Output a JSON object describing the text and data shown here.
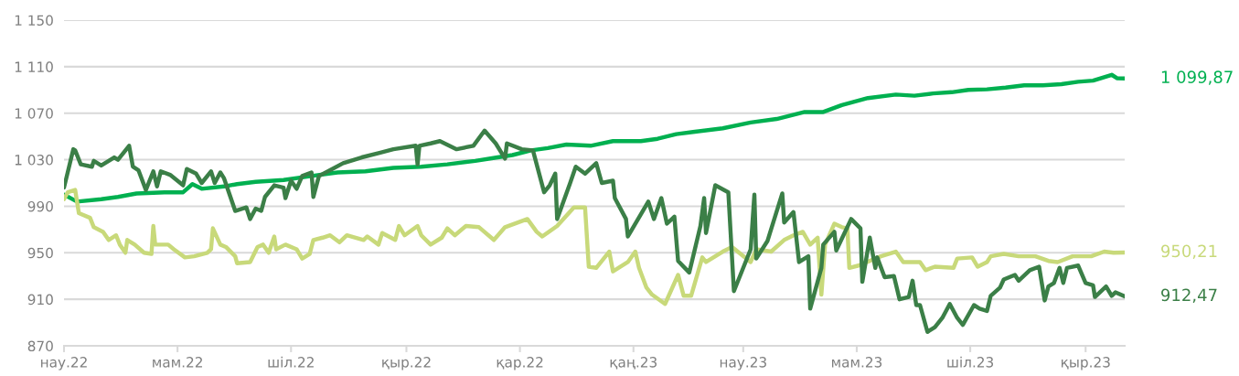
{
  "chart_data": {
    "type": "line",
    "xlim": [
      "2022-03-01",
      "2023-09-22"
    ],
    "ylim": [
      870,
      1150
    ],
    "xticks": [
      {
        "value": "2022-03-01",
        "label": "нау.22"
      },
      {
        "value": "2022-05-01",
        "label": "мам.22"
      },
      {
        "value": "2022-07-01",
        "label": "шіл.22"
      },
      {
        "value": "2022-09-01",
        "label": "қыр.22"
      },
      {
        "value": "2022-11-01",
        "label": "қар.22"
      },
      {
        "value": "2023-01-01",
        "label": "қаң.23"
      },
      {
        "value": "2023-03-01",
        "label": "нау.23"
      },
      {
        "value": "2023-05-01",
        "label": "мам.23"
      },
      {
        "value": "2023-07-01",
        "label": "шіл.23"
      },
      {
        "value": "2023-09-01",
        "label": "қыр.23"
      }
    ],
    "yticks": [
      870,
      910,
      950,
      990,
      {
        "value": 1030,
        "label": "1 030"
      },
      {
        "value": 1070,
        "label": "1 070"
      },
      {
        "value": 1110,
        "label": "1 110"
      },
      {
        "value": 1150,
        "label": "1 150"
      }
    ],
    "grid": "y",
    "marker": "none",
    "line_style": "solid",
    "annotations": [
      {
        "text": "1 099,87",
        "x": "2023-09-22",
        "y": 1099.87
      },
      {
        "text": "950,21",
        "x": "2023-09-22",
        "y": 950.21
      },
      {
        "text": "912,47",
        "x": "2023-09-22",
        "y": 912.47
      }
    ],
    "series": [
      {
        "color": "#00b050",
        "x": [
          "2022-03-01",
          "2022-03-08",
          "2022-03-21",
          "2022-03-30",
          "2022-04-09",
          "2022-04-24",
          "2022-05-04",
          "2022-05-09",
          "2022-05-14",
          "2022-05-26",
          "2022-06-02",
          "2022-06-12",
          "2022-06-27",
          "2022-07-12",
          "2022-07-26",
          "2022-08-10",
          "2022-08-25",
          "2022-09-09",
          "2022-09-23",
          "2022-10-08",
          "2022-10-20",
          "2022-10-28",
          "2022-11-07",
          "2022-11-16",
          "2022-11-26",
          "2022-12-09",
          "2022-12-21",
          "2023-01-05",
          "2023-01-14",
          "2023-01-24",
          "2023-02-03",
          "2023-02-18",
          "2023-03-05",
          "2023-03-19",
          "2023-04-03",
          "2023-04-13",
          "2023-04-23",
          "2023-05-07",
          "2023-05-22",
          "2023-06-01",
          "2023-06-11",
          "2023-06-21",
          "2023-06-30",
          "2023-07-10",
          "2023-07-20",
          "2023-07-30",
          "2023-08-09",
          "2023-08-19",
          "2023-08-28",
          "2023-09-05",
          "2023-09-15",
          "2023-09-18",
          "2023-09-22"
        ],
        "values": [
          1000,
          994,
          996,
          998,
          1001,
          1002,
          1002,
          1009,
          1005,
          1007,
          1009,
          1011,
          1012.5,
          1016,
          1019,
          1020,
          1023,
          1024,
          1026,
          1029,
          1032,
          1034,
          1038,
          1040,
          1043,
          1042,
          1046,
          1046,
          1048,
          1052,
          1054,
          1057,
          1062,
          1065,
          1071,
          1071,
          1077,
          1083,
          1086,
          1085,
          1087,
          1088,
          1090,
          1090.5,
          1092,
          1094,
          1094,
          1095,
          1097,
          1098,
          1103,
          1100,
          1099.87
        ]
      },
      {
        "color": "#c8d97a",
        "x": [
          "2022-03-01",
          "2022-03-03",
          "2022-03-07",
          "2022-03-09",
          "2022-03-15",
          "2022-03-17",
          "2022-03-22",
          "2022-03-25",
          "2022-03-29",
          "2022-03-31",
          "2022-04-03",
          "2022-04-04",
          "2022-04-08",
          "2022-04-13",
          "2022-04-17",
          "2022-04-18",
          "2022-04-19",
          "2022-04-26",
          "2022-04-29",
          "2022-05-05",
          "2022-05-10",
          "2022-05-17",
          "2022-05-19",
          "2022-05-20",
          "2022-05-24",
          "2022-05-27",
          "2022-06-01",
          "2022-06-02",
          "2022-06-09",
          "2022-06-13",
          "2022-06-16",
          "2022-06-19",
          "2022-06-22",
          "2022-06-23",
          "2022-06-28",
          "2022-07-04",
          "2022-07-07",
          "2022-07-11",
          "2022-07-13",
          "2022-07-18",
          "2022-07-22",
          "2022-07-27",
          "2022-07-31",
          "2022-08-09",
          "2022-08-11",
          "2022-08-17",
          "2022-08-19",
          "2022-08-26",
          "2022-08-28",
          "2022-08-31",
          "2022-09-07",
          "2022-09-09",
          "2022-09-14",
          "2022-09-20",
          "2022-09-23",
          "2022-09-27",
          "2022-10-03",
          "2022-10-10",
          "2022-10-18",
          "2022-10-24",
          "2022-11-05",
          "2022-11-10",
          "2022-11-13",
          "2022-11-21",
          "2022-11-30",
          "2022-12-06",
          "2022-12-08",
          "2022-12-12",
          "2022-12-19",
          "2022-12-21",
          "2022-12-29",
          "2023-01-02",
          "2023-01-04",
          "2023-01-08",
          "2023-01-11",
          "2023-01-18",
          "2023-01-25",
          "2023-01-28",
          "2023-02-01",
          "2023-02-07",
          "2023-02-09",
          "2023-02-18",
          "2023-02-23",
          "2023-03-05",
          "2023-03-08",
          "2023-03-16",
          "2023-03-23",
          "2023-03-28",
          "2023-04-02",
          "2023-04-06",
          "2023-04-10",
          "2023-04-12",
          "2023-04-14",
          "2023-04-19",
          "2023-04-23",
          "2023-04-26",
          "2023-04-27",
          "2023-05-02",
          "2023-05-14",
          "2023-05-22",
          "2023-05-26",
          "2023-06-04",
          "2023-06-07",
          "2023-06-12",
          "2023-06-22",
          "2023-06-24",
          "2023-07-02",
          "2023-07-05",
          "2023-07-10",
          "2023-07-12",
          "2023-07-19",
          "2023-07-27",
          "2023-08-05",
          "2023-08-12",
          "2023-08-17",
          "2023-08-25",
          "2023-09-04",
          "2023-09-11",
          "2023-09-16",
          "2023-09-22"
        ],
        "values": [
          996,
          1002,
          1004,
          984,
          980,
          972,
          968,
          961,
          965,
          957,
          950,
          961,
          957,
          950,
          949,
          973,
          957,
          957,
          953,
          946,
          947,
          950,
          953,
          971,
          957,
          955,
          947,
          941,
          942,
          955,
          957,
          950,
          964,
          953,
          957,
          953,
          945,
          949,
          961,
          963,
          965,
          959,
          965,
          961,
          964,
          957,
          967,
          961,
          973,
          965,
          973,
          965,
          957,
          963,
          971,
          965,
          973,
          972,
          961,
          972,
          979,
          968,
          964,
          973,
          989,
          989,
          938,
          937,
          951,
          934,
          942,
          951,
          937,
          920,
          914,
          906,
          931,
          913,
          913,
          946,
          942,
          951,
          955,
          942,
          953,
          951,
          961,
          965,
          968,
          957,
          963,
          914,
          957,
          975,
          972,
          971,
          937,
          939,
          947,
          951,
          942,
          942,
          935,
          938,
          937,
          945,
          946,
          938,
          942,
          947,
          949,
          947,
          947,
          943,
          942,
          947,
          947,
          951,
          950,
          950.21
        ]
      },
      {
        "color": "#3b7f47",
        "x": [
          "2022-03-01",
          "2022-03-06",
          "2022-03-07",
          "2022-03-10",
          "2022-03-16",
          "2022-03-17",
          "2022-03-21",
          "2022-03-28",
          "2022-03-30",
          "2022-04-05",
          "2022-04-07",
          "2022-04-10",
          "2022-04-14",
          "2022-04-18",
          "2022-04-20",
          "2022-04-22",
          "2022-04-27",
          "2022-05-04",
          "2022-05-06",
          "2022-05-11",
          "2022-05-14",
          "2022-05-19",
          "2022-05-21",
          "2022-05-24",
          "2022-05-26",
          "2022-06-01",
          "2022-06-07",
          "2022-06-09",
          "2022-06-12",
          "2022-06-15",
          "2022-06-17",
          "2022-06-22",
          "2022-06-27",
          "2022-06-28",
          "2022-07-01",
          "2022-07-04",
          "2022-07-07",
          "2022-07-12",
          "2022-07-13",
          "2022-07-16",
          "2022-07-22",
          "2022-07-29",
          "2022-08-08",
          "2022-08-18",
          "2022-08-25",
          "2022-09-06",
          "2022-09-07",
          "2022-09-08",
          "2022-09-14",
          "2022-09-19",
          "2022-09-28",
          "2022-10-07",
          "2022-10-13",
          "2022-10-19",
          "2022-10-24",
          "2022-10-25",
          "2022-11-02",
          "2022-11-08",
          "2022-11-14",
          "2022-11-17",
          "2022-11-20",
          "2022-11-21",
          "2022-11-28",
          "2022-12-01",
          "2022-12-06",
          "2022-12-12",
          "2022-12-15",
          "2022-12-21",
          "2022-12-22",
          "2022-12-28",
          "2022-12-29",
          "2023-01-09",
          "2023-01-12",
          "2023-01-16",
          "2023-01-19",
          "2023-01-23",
          "2023-01-25",
          "2023-01-31",
          "2023-02-06",
          "2023-02-08",
          "2023-02-09",
          "2023-02-14",
          "2023-02-21",
          "2023-02-24",
          "2023-03-05",
          "2023-03-07",
          "2023-03-08",
          "2023-03-14",
          "2023-03-22",
          "2023-03-23",
          "2023-03-28",
          "2023-03-31",
          "2023-04-05",
          "2023-04-06",
          "2023-04-12",
          "2023-04-13",
          "2023-04-19",
          "2023-04-20",
          "2023-04-28",
          "2023-05-03",
          "2023-05-04",
          "2023-05-08",
          "2023-05-11",
          "2023-05-12",
          "2023-05-16",
          "2023-05-21",
          "2023-05-24",
          "2023-05-29",
          "2023-05-31",
          "2023-06-02",
          "2023-06-04",
          "2023-06-08",
          "2023-06-12",
          "2023-06-16",
          "2023-06-20",
          "2023-06-24",
          "2023-06-27",
          "2023-07-03",
          "2023-07-06",
          "2023-07-10",
          "2023-07-12",
          "2023-07-17",
          "2023-07-19",
          "2023-07-25",
          "2023-07-27",
          "2023-08-02",
          "2023-08-07",
          "2023-08-10",
          "2023-08-12",
          "2023-08-15",
          "2023-08-18",
          "2023-08-20",
          "2023-08-22",
          "2023-08-28",
          "2023-09-01",
          "2023-09-05",
          "2023-09-06",
          "2023-09-12",
          "2023-09-15",
          "2023-09-17",
          "2023-09-22"
        ],
        "values": [
          1006,
          1039,
          1038,
          1026,
          1024,
          1029,
          1025,
          1032,
          1030,
          1042,
          1024,
          1021,
          1004,
          1020,
          1007,
          1020,
          1017,
          1008,
          1022,
          1018,
          1010,
          1020,
          1010,
          1019,
          1014,
          986,
          989,
          979,
          988,
          986,
          998,
          1008,
          1006,
          997,
          1012,
          1005,
          1016,
          1019,
          998,
          1016,
          1021,
          1027,
          1032,
          1036,
          1039,
          1042,
          1026,
          1042,
          1044,
          1046,
          1039,
          1042,
          1055,
          1044,
          1031,
          1044,
          1039,
          1038,
          1002,
          1008,
          1018,
          979,
          1010,
          1024,
          1018,
          1027,
          1010,
          1012,
          997,
          979,
          964,
          994,
          979,
          997,
          975,
          981,
          943,
          933,
          973,
          997,
          967,
          1008,
          1002,
          917,
          953,
          1000,
          945,
          960,
          1001,
          976,
          985,
          942,
          947,
          902,
          937,
          957,
          968,
          952,
          979,
          971,
          925,
          963,
          937,
          946,
          929,
          930,
          910,
          912,
          926,
          905,
          905,
          882,
          886,
          894,
          906,
          894,
          888,
          905,
          902,
          900,
          913,
          920,
          927,
          931,
          926,
          935,
          938,
          909,
          921,
          924,
          937,
          924,
          937,
          939,
          924,
          922,
          912,
          921,
          913,
          916,
          912.47
        ]
      }
    ]
  }
}
